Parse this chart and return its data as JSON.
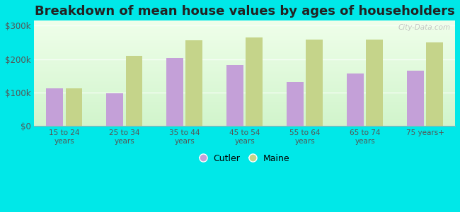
{
  "title": "Breakdown of mean house values by ages of householders",
  "categories": [
    "15 to 24\nyears",
    "25 to 34\nyears",
    "35 to 44\nyears",
    "45 to 54\nyears",
    "55 to 64\nyears",
    "65 to 74\nyears",
    "75 years+"
  ],
  "cutler_values": [
    113000,
    98000,
    203000,
    182000,
    132000,
    158000,
    165000
  ],
  "maine_values": [
    113000,
    210000,
    256000,
    264000,
    258000,
    258000,
    250000
  ],
  "cutler_color": "#c4a0d8",
  "maine_color": "#c5d48a",
  "background_color": "#00e8e8",
  "yticks": [
    0,
    100000,
    200000,
    300000
  ],
  "ytick_labels": [
    "$0",
    "$100k",
    "$200k",
    "$300k"
  ],
  "ylim": [
    0,
    315000
  ],
  "legend_labels": [
    "Cutler",
    "Maine"
  ],
  "title_fontsize": 13,
  "watermark": "City-Data.com"
}
